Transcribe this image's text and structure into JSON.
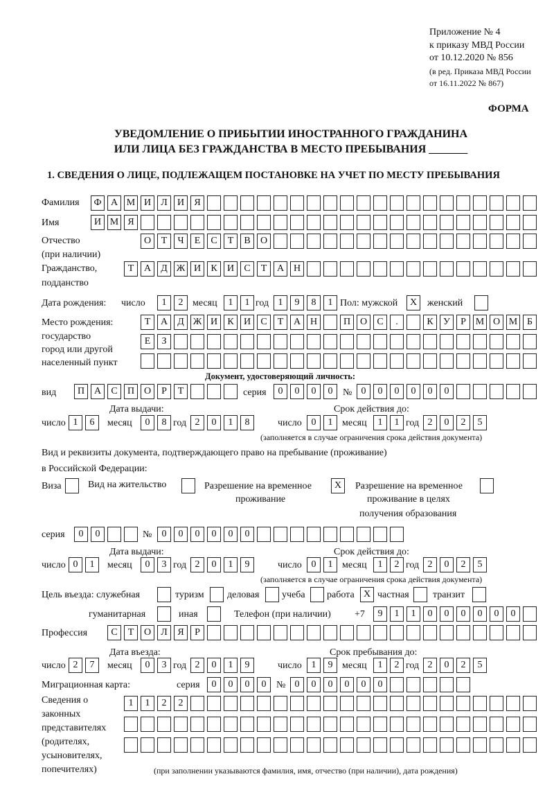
{
  "header": {
    "appendix": "Приложение № 4",
    "order": "к приказу МВД России",
    "order_date": "от 10.12.2020 № 856",
    "edition1": "(в ред. Приказа МВД России",
    "edition2": "от 16.11.2022 № 867)",
    "form_label": "ФОРМА",
    "title1": "УВЕДОМЛЕНИЕ О ПРИБЫТИИ ИНОСТРАННОГО ГРАЖДАНИНА",
    "title2": "ИЛИ ЛИЦА БЕЗ ГРАЖДАНСТВА В МЕСТО ПРЕБЫВАНИЯ _______",
    "section1": "1. СВЕДЕНИЯ О ЛИЦЕ, ПОДЛЕЖАЩЕМ ПОСТАНОВКЕ НА УЧЕТ ПО МЕСТУ ПРЕБЫВАНИЯ"
  },
  "labels": {
    "surname": "Фамилия",
    "name": "Имя",
    "patronymic": "Отчество",
    "patronymic2": "(при наличии)",
    "citizenship": "Гражданство,",
    "citizenship2": "подданство",
    "dob": "Дата рождения:",
    "day": "число",
    "month": "месяц",
    "year": "год",
    "sex": "Пол: мужской",
    "female": "женский",
    "birthplace": "Место рождения:",
    "birthplace2": "государство",
    "birthplace3": "город или другой",
    "birthplace4": "населенный пункт",
    "id_doc": "Документ, удостоверяющий личность:",
    "kind": "вид",
    "series": "серия",
    "number": "№",
    "issue_date": "Дата выдачи:",
    "valid_until": "Срок действия до:",
    "valid_note": "(заполняется в случае ограничения срока действия документа)",
    "stay_doc1": "Вид и реквизиты документа, подтверждающего право на пребывание (проживание)",
    "stay_doc2": "в Российской Федерации:",
    "visa": "Виза",
    "residence": "Вид на жительство",
    "temp_res": "Разрешение на временное",
    "temp_res2": "проживание",
    "temp_edu": "Разрешение на временное",
    "temp_edu2": "проживание в целях",
    "temp_edu3": "получения образования",
    "purpose": "Цель въезда: служебная",
    "tourism": "туризм",
    "business": "деловая",
    "study": "учеба",
    "work": "работа",
    "private": "частная",
    "transit": "транзит",
    "humanitarian": "гуманитарная",
    "other": "иная",
    "phone": "Телефон (при наличии)",
    "phone_prefix": "+7",
    "profession": "Профессия",
    "entry_date": "Дата въезда:",
    "stay_until": "Срок пребывания до:",
    "migration_card": "Миграционная карта:",
    "reps1": "Сведения о",
    "reps2": "законных",
    "reps3": "представителях",
    "reps4": "(родителях,",
    "reps5": "усыновителях,",
    "reps6": "попечителях)",
    "reps_note": "(при заполнении указываются фамилия, имя, отчество (при наличии), дата рождения)"
  },
  "fields": {
    "surname": [
      "Ф",
      "А",
      "М",
      "И",
      "Л",
      "И",
      "Я",
      "",
      "",
      "",
      "",
      "",
      "",
      "",
      "",
      "",
      "",
      "",
      "",
      "",
      "",
      "",
      "",
      "",
      "",
      "",
      ""
    ],
    "name": [
      "И",
      "М",
      "Я",
      "",
      "",
      "",
      "",
      "",
      "",
      "",
      "",
      "",
      "",
      "",
      "",
      "",
      "",
      "",
      "",
      "",
      "",
      "",
      "",
      "",
      "",
      "",
      ""
    ],
    "patronymic": [
      "О",
      "Т",
      "Ч",
      "Е",
      "С",
      "Т",
      "В",
      "О",
      "",
      "",
      "",
      "",
      "",
      "",
      "",
      "",
      "",
      "",
      "",
      "",
      "",
      "",
      "",
      ""
    ],
    "citizenship": [
      "Т",
      "А",
      "Д",
      "Ж",
      "И",
      "К",
      "И",
      "С",
      "Т",
      "А",
      "Н",
      "",
      "",
      "",
      "",
      "",
      "",
      "",
      "",
      "",
      "",
      "",
      "",
      "",
      ""
    ],
    "dob_day": [
      "1",
      "2"
    ],
    "dob_month": [
      "1",
      "1"
    ],
    "dob_year": [
      "1",
      "9",
      "8",
      "1"
    ],
    "sex_male": [
      "X"
    ],
    "sex_female": [
      ""
    ],
    "birthplace1": [
      "Т",
      "А",
      "Д",
      "Ж",
      "И",
      "К",
      "И",
      "С",
      "Т",
      "А",
      "Н",
      "",
      "П",
      "О",
      "С",
      ".",
      "",
      "К",
      "У",
      "Р",
      "М",
      "О",
      "М",
      "Б"
    ],
    "birthplace2": [
      "Е",
      "З",
      "",
      "",
      "",
      "",
      "",
      "",
      "",
      "",
      "",
      "",
      "",
      "",
      "",
      "",
      "",
      "",
      "",
      "",
      "",
      "",
      "",
      ""
    ],
    "birthplace3": [
      "",
      "",
      "",
      "",
      "",
      "",
      "",
      "",
      "",
      "",
      "",
      "",
      "",
      "",
      "",
      "",
      "",
      "",
      "",
      "",
      "",
      "",
      "",
      ""
    ],
    "doc_kind": [
      "П",
      "А",
      "С",
      "П",
      "О",
      "Р",
      "Т",
      "",
      "",
      ""
    ],
    "doc_series": [
      "0",
      "0",
      "0",
      "0"
    ],
    "doc_number": [
      "0",
      "0",
      "0",
      "0",
      "0",
      "0",
      "",
      "",
      "",
      "",
      ""
    ],
    "doc_issue_day": [
      "1",
      "6"
    ],
    "doc_issue_month": [
      "0",
      "8"
    ],
    "doc_issue_year": [
      "2",
      "0",
      "1",
      "8"
    ],
    "doc_valid_day": [
      "0",
      "1"
    ],
    "doc_valid_month": [
      "1",
      "1"
    ],
    "doc_valid_year": [
      "2",
      "0",
      "2",
      "5"
    ],
    "visa": [
      ""
    ],
    "residence": [
      ""
    ],
    "temp_res": [
      "X"
    ],
    "temp_edu": [
      ""
    ],
    "stay_series": [
      "0",
      "0",
      "",
      ""
    ],
    "stay_number": [
      "0",
      "0",
      "0",
      "0",
      "0",
      "0",
      "",
      "",
      "",
      "",
      "",
      "",
      "",
      "",
      ""
    ],
    "stay_issue_day": [
      "0",
      "1"
    ],
    "stay_issue_month": [
      "0",
      "3"
    ],
    "stay_issue_year": [
      "2",
      "0",
      "1",
      "9"
    ],
    "stay_valid_day": [
      "0",
      "1"
    ],
    "stay_valid_month": [
      "1",
      "2"
    ],
    "stay_valid_year": [
      "2",
      "0",
      "2",
      "5"
    ],
    "p_service": [
      ""
    ],
    "p_tourism": [
      ""
    ],
    "p_business": [
      ""
    ],
    "p_study": [
      ""
    ],
    "p_work": [
      "X"
    ],
    "p_private": [
      ""
    ],
    "p_transit": [
      ""
    ],
    "p_humanitarian": [
      ""
    ],
    "p_other": [
      ""
    ],
    "phone": [
      "9",
      "1",
      "1",
      "0",
      "0",
      "0",
      "0",
      "0",
      "0",
      ""
    ],
    "profession": [
      "С",
      "Т",
      "О",
      "Л",
      "Я",
      "Р",
      "",
      "",
      "",
      "",
      "",
      "",
      "",
      "",
      "",
      "",
      "",
      "",
      "",
      "",
      "",
      "",
      "",
      "",
      "",
      ""
    ],
    "entry_day": [
      "2",
      "7"
    ],
    "entry_month": [
      "0",
      "3"
    ],
    "entry_year": [
      "2",
      "0",
      "1",
      "9"
    ],
    "stay_day": [
      "1",
      "9"
    ],
    "stay_month": [
      "1",
      "2"
    ],
    "stay_year": [
      "2",
      "0",
      "2",
      "5"
    ],
    "mc_series": [
      "0",
      "0",
      "0",
      "0"
    ],
    "mc_number": [
      "0",
      "0",
      "0",
      "0",
      "0",
      "0",
      "",
      "",
      "",
      "",
      ""
    ],
    "reps1": [
      "1",
      "1",
      "2",
      "2",
      "",
      "",
      "",
      "",
      "",
      "",
      "",
      "",
      "",
      "",
      "",
      "",
      "",
      "",
      "",
      "",
      "",
      "",
      "",
      "",
      ""
    ],
    "reps2": [
      "",
      "",
      "",
      "",
      "",
      "",
      "",
      "",
      "",
      "",
      "",
      "",
      "",
      "",
      "",
      "",
      "",
      "",
      "",
      "",
      "",
      "",
      "",
      "",
      ""
    ],
    "reps3": [
      "",
      "",
      "",
      "",
      "",
      "",
      "",
      "",
      "",
      "",
      "",
      "",
      "",
      "",
      "",
      "",
      "",
      "",
      "",
      "",
      "",
      "",
      "",
      "",
      ""
    ]
  }
}
